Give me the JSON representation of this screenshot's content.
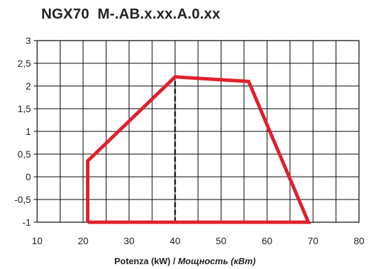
{
  "chart_data": {
    "type": "area",
    "title": "NGX70  M-.AB.x.xx.A.0.xx",
    "xlabel_parts": [
      "Potenza (kW)",
      " / ",
      "Мощность (кВт)"
    ],
    "ylabel": "",
    "xlim": [
      10,
      80
    ],
    "ylim": [
      -1,
      3
    ],
    "x_ticks": [
      10,
      20,
      30,
      40,
      50,
      60,
      70,
      80
    ],
    "x_tick_labels": [
      "10",
      "20",
      "30",
      "40",
      "50",
      "60",
      "70",
      "80"
    ],
    "y_ticks": [
      3,
      2.5,
      2,
      1.5,
      1,
      0.5,
      0,
      -0.5,
      -1
    ],
    "y_tick_labels": [
      "3",
      "2,5",
      "2",
      "1,5",
      "1",
      "0,5",
      "0",
      "-0,5",
      "-1"
    ],
    "x_minor_step": 5,
    "grid": true,
    "series": [
      {
        "color": "#e0202c",
        "points": [
          [
            21,
            -1
          ],
          [
            21,
            0.35
          ],
          [
            40,
            2.2
          ],
          [
            56,
            2.1
          ],
          [
            69,
            -1
          ],
          [
            21,
            -1
          ]
        ]
      }
    ],
    "reference_lines": [
      {
        "axis": "x",
        "value": 40,
        "from": -1,
        "to": 2.2,
        "style": "dashed",
        "color": "#000000"
      }
    ]
  }
}
